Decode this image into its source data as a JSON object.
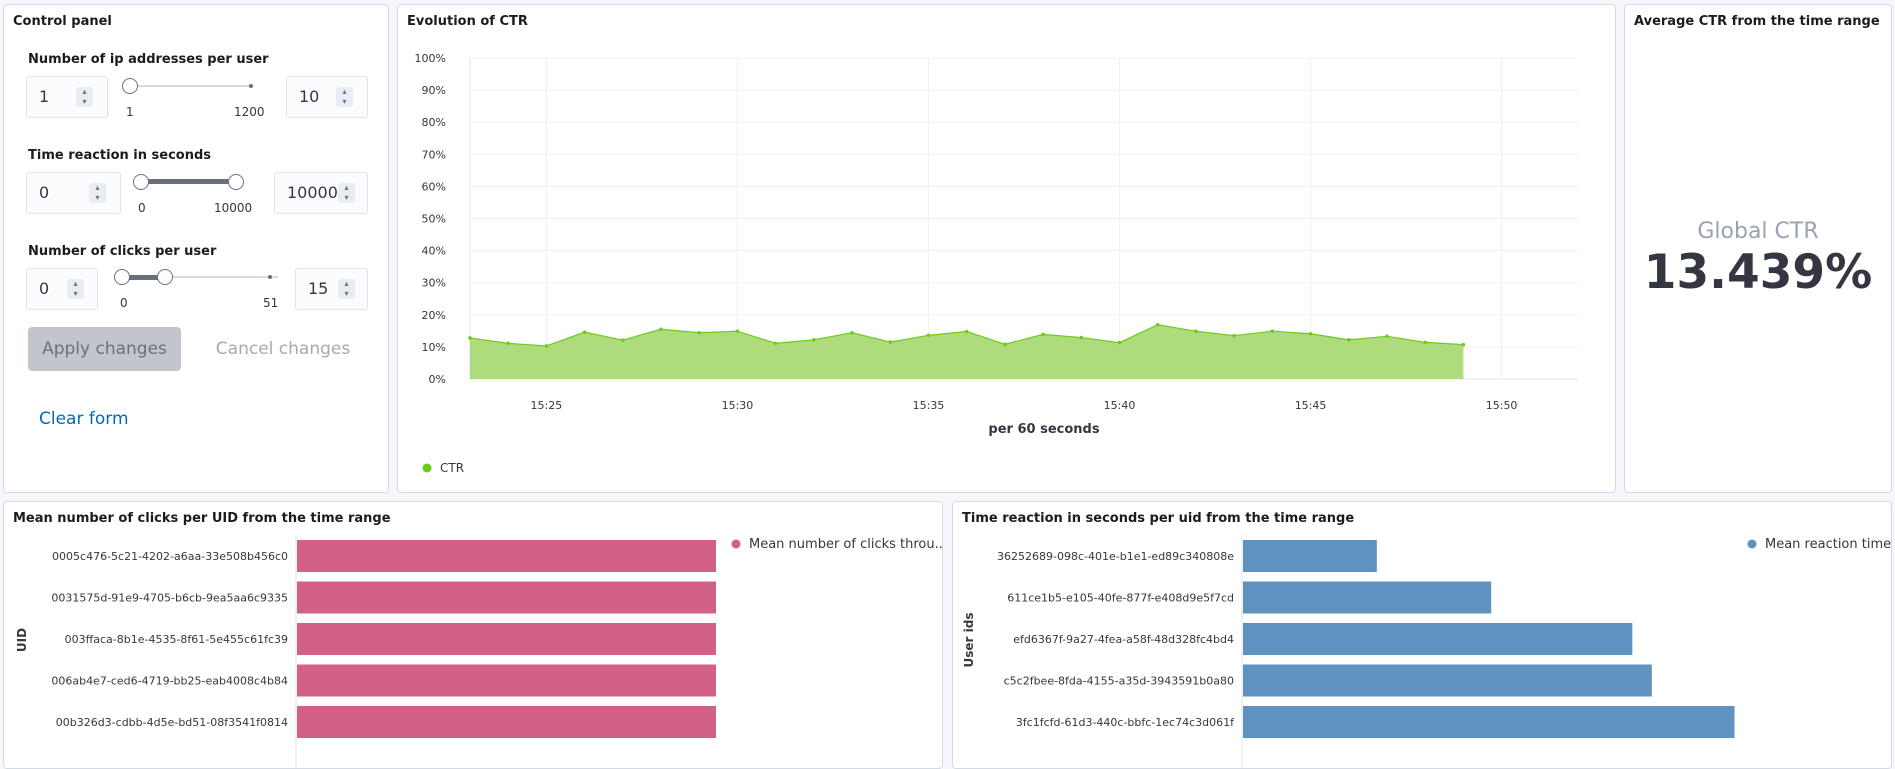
{
  "control_panel": {
    "title": "Control panel",
    "ip": {
      "label": "Number of ip addresses per user",
      "min_value": "1",
      "max_value": "10",
      "range_min": "1",
      "range_max": "1200"
    },
    "time": {
      "label": "Time reaction in seconds",
      "min_value": "0",
      "max_value": "10000",
      "range_min": "0",
      "range_max": "10000"
    },
    "clicks": {
      "label": "Number of clicks per user",
      "min_value": "0",
      "max_value": "15",
      "range_min": "0",
      "range_max": "51"
    },
    "apply_label": "Apply changes",
    "cancel_label": "Cancel changes",
    "clear_label": "Clear form"
  },
  "ctr_chart": {
    "title": "Evolution of CTR",
    "chart_data": {
      "type": "area",
      "title": "Evolution of CTR",
      "xlabel": "per 60 seconds",
      "ylabel": "",
      "ylim": [
        0,
        100
      ],
      "y_ticks": [
        "0%",
        "10%",
        "20%",
        "30%",
        "40%",
        "50%",
        "60%",
        "70%",
        "80%",
        "90%",
        "100%"
      ],
      "x_ticks": [
        "15:25",
        "15:30",
        "15:35",
        "15:40",
        "15:45",
        "15:50"
      ],
      "x": [
        "15:23",
        "15:24",
        "15:25",
        "15:26",
        "15:27",
        "15:28",
        "15:29",
        "15:30",
        "15:31",
        "15:32",
        "15:33",
        "15:34",
        "15:35",
        "15:36",
        "15:37",
        "15:38",
        "15:39",
        "15:40",
        "15:41",
        "15:42",
        "15:43",
        "15:44",
        "15:45",
        "15:46",
        "15:47",
        "15:48",
        "15:49"
      ],
      "series": [
        {
          "name": "CTR",
          "color": "#6dcc1a",
          "values": [
            12.8,
            11.1,
            10.3,
            14.6,
            12.1,
            15.5,
            14.4,
            14.9,
            11.1,
            12.2,
            14.4,
            11.5,
            13.6,
            14.8,
            10.8,
            13.9,
            12.9,
            11.3,
            16.9,
            14.9,
            13.5,
            14.9,
            14.1,
            12.2,
            13.3,
            11.4,
            10.7
          ]
        }
      ],
      "grid": true,
      "legend": "bottom-left"
    }
  },
  "metric": {
    "title": "Average CTR from the time range",
    "label": "Global CTR",
    "value": "13.439%"
  },
  "clicks_chart": {
    "title": "Mean number of clicks per UID from the time range",
    "chart_data": {
      "type": "bar",
      "orientation": "horizontal",
      "ylabel": "UID",
      "categories": [
        "0005c476-5c21-4202-a6aa-33e508b456c0",
        "0031575d-91e9-4705-b6cb-9ea5aa6c9335",
        "003ffaca-8b1e-4535-8f61-5e455c61fc39",
        "006ab4e7-ced6-4719-bb25-eab4008c4b84",
        "00b326d3-cdbb-4d5e-bd51-08f3541f0814"
      ],
      "series": [
        {
          "name": "Mean number of clicks throu...",
          "color": "#d36086",
          "values": [
            10,
            10,
            10,
            10,
            10
          ]
        }
      ],
      "xlim": [
        0,
        10
      ],
      "legend": "top-right"
    }
  },
  "reaction_chart": {
    "title": "Time reaction in seconds per uid from the time range",
    "chart_data": {
      "type": "bar",
      "orientation": "horizontal",
      "ylabel": "User ids",
      "categories": [
        "36252689-098c-401e-b1e1-ed89c340808e",
        "611ce1b5-e105-40fe-877f-e408d9e5f7cd",
        "efd6367f-9a27-4fea-a58f-48d328fc4bd4",
        "c5c2fbee-8fda-4155-a35d-3943591b0a80",
        "3fc1fcfd-61d3-440c-bbfc-1ec74c3d061f"
      ],
      "series": [
        {
          "name": "Mean reaction time",
          "color": "#6092c0",
          "values": [
            110,
            204,
            320,
            336,
            404
          ]
        }
      ],
      "xlim": [
        0,
        420
      ],
      "legend": "top-right"
    }
  }
}
